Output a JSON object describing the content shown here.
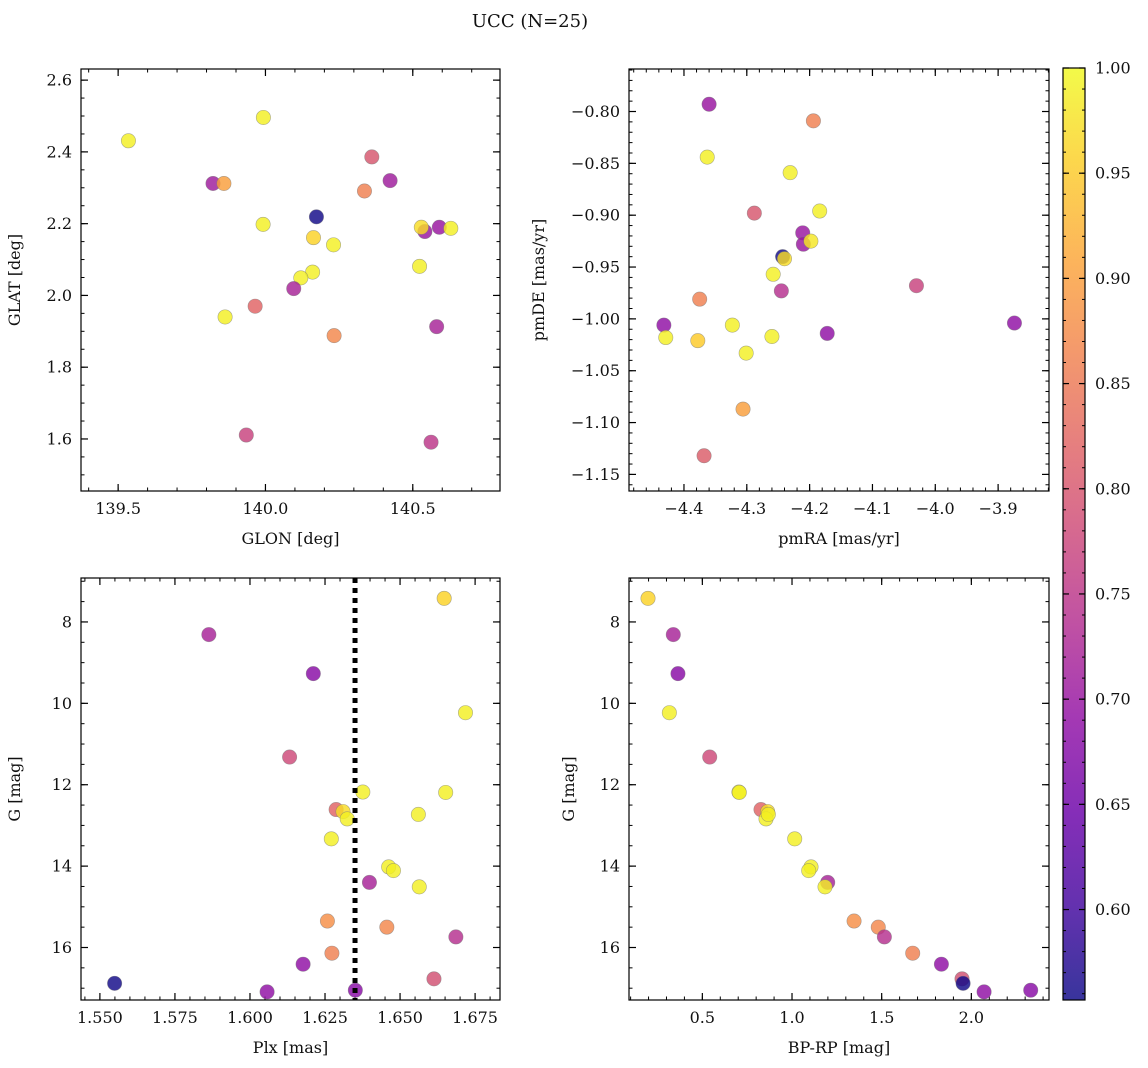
{
  "chart_data": {
    "title": "UCC (N=25)",
    "colorbar": {
      "colormap": "plasma",
      "range": [
        0.557,
        1.0
      ],
      "ticks": [
        0.6,
        0.65,
        0.7,
        0.75,
        0.8,
        0.85,
        0.9,
        0.95,
        1.0
      ],
      "ticklabels": [
        "0.60",
        "0.65",
        "0.70",
        "0.75",
        "0.80",
        "0.85",
        "0.90",
        "0.95",
        "1.00"
      ],
      "minor_step": 0.01
    },
    "panels": [
      {
        "type": "scatter",
        "xlabel": "GLON [deg]",
        "ylabel": "GLAT [deg]",
        "xlim": [
          139.374,
          140.796
        ],
        "ylim": [
          1.455,
          2.631
        ],
        "y_inverted": false,
        "xticks": [
          139.5,
          140.0,
          140.5
        ],
        "xticklabels": [
          "139.5",
          "140.0",
          "140.5"
        ],
        "xminor": 0.1,
        "yticks": [
          1.6,
          1.8,
          2.0,
          2.2,
          2.4,
          2.6
        ],
        "yticklabels": [
          "1.6",
          "1.8",
          "2.0",
          "2.2",
          "2.4",
          "2.6"
        ],
        "yminor": 0.05,
        "points": [
          [
            139.535,
            2.431,
            0.99
          ],
          [
            139.993,
            2.496,
            0.99
          ],
          [
            140.361,
            2.386,
            0.8
          ],
          [
            139.822,
            2.312,
            0.71
          ],
          [
            139.859,
            2.312,
            0.9
          ],
          [
            140.423,
            2.32,
            0.71
          ],
          [
            140.336,
            2.291,
            0.86
          ],
          [
            140.173,
            2.219,
            0.56
          ],
          [
            139.992,
            2.198,
            0.99
          ],
          [
            140.541,
            2.178,
            0.7
          ],
          [
            140.529,
            2.19,
            0.97
          ],
          [
            140.59,
            2.19,
            0.7
          ],
          [
            140.629,
            2.187,
            0.99
          ],
          [
            140.163,
            2.161,
            0.96
          ],
          [
            140.231,
            2.141,
            0.99
          ],
          [
            140.523,
            2.081,
            0.99
          ],
          [
            140.16,
            2.065,
            0.99
          ],
          [
            140.12,
            2.049,
            0.99
          ],
          [
            140.096,
            2.019,
            0.72
          ],
          [
            139.965,
            1.97,
            0.82
          ],
          [
            139.863,
            1.94,
            0.99
          ],
          [
            140.233,
            1.888,
            0.87
          ],
          [
            140.581,
            1.913,
            0.72
          ],
          [
            139.935,
            1.611,
            0.77
          ],
          [
            140.562,
            1.591,
            0.75
          ]
        ]
      },
      {
        "type": "scatter",
        "xlabel": "pmRA [mas/yr]",
        "ylabel": "pmDE [mas/yr]",
        "xlim": [
          -4.4875,
          -3.819
        ],
        "ylim": [
          -1.166,
          -0.759
        ],
        "y_inverted": false,
        "xticks": [
          -4.4,
          -4.3,
          -4.2,
          -4.1,
          -4.0,
          -3.9
        ],
        "xticklabels": [
          "−4.4",
          "−4.3",
          "−4.2",
          "−4.1",
          "−4.0",
          "−3.9"
        ],
        "xminor": 0.02,
        "yticks": [
          -1.15,
          -1.1,
          -1.05,
          -1.0,
          -0.95,
          -0.9,
          -0.85,
          -0.8
        ],
        "yticklabels": [
          "−1.15",
          "−1.10",
          "−1.05",
          "−1.00",
          "−0.95",
          "−0.90",
          "−0.85",
          "−0.80"
        ],
        "yminor": 0.01,
        "points": [
          [
            -4.36,
            -0.793,
            0.7
          ],
          [
            -4.194,
            -0.809,
            0.86
          ],
          [
            -4.363,
            -0.844,
            0.99
          ],
          [
            -4.231,
            -0.859,
            0.99
          ],
          [
            -4.288,
            -0.898,
            0.8
          ],
          [
            -4.184,
            -0.896,
            0.99
          ],
          [
            -4.211,
            -0.917,
            0.7
          ],
          [
            -4.21,
            -0.928,
            0.7
          ],
          [
            -4.198,
            -0.925,
            0.98
          ],
          [
            -4.243,
            -0.94,
            0.56
          ],
          [
            -4.24,
            -0.942,
            0.97
          ],
          [
            -4.258,
            -0.957,
            0.99
          ],
          [
            -4.245,
            -0.973,
            0.74
          ],
          [
            -4.03,
            -0.968,
            0.77
          ],
          [
            -4.375,
            -0.981,
            0.86
          ],
          [
            -4.432,
            -1.006,
            0.69
          ],
          [
            -4.429,
            -1.018,
            0.99
          ],
          [
            -4.323,
            -1.006,
            0.99
          ],
          [
            -4.378,
            -1.021,
            0.95
          ],
          [
            -4.26,
            -1.017,
            0.99
          ],
          [
            -4.301,
            -1.033,
            0.99
          ],
          [
            -4.172,
            -1.014,
            0.69
          ],
          [
            -3.874,
            -1.004,
            0.69
          ],
          [
            -4.306,
            -1.087,
            0.9
          ],
          [
            -4.368,
            -1.132,
            0.81
          ]
        ]
      },
      {
        "type": "scatter",
        "xlabel": "Plx [mas]",
        "ylabel": "G [mag]",
        "xlim": [
          1.5437,
          1.6833
        ],
        "ylim": [
          17.29,
          6.92
        ],
        "y_inverted": true,
        "xticks": [
          1.55,
          1.575,
          1.6,
          1.625,
          1.65,
          1.675
        ],
        "xticklabels": [
          "1.550",
          "1.575",
          "1.600",
          "1.625",
          "1.650",
          "1.675"
        ],
        "xminor": 0.005,
        "yticks": [
          8,
          10,
          12,
          14,
          16
        ],
        "yticklabels": [
          "8",
          "10",
          "12",
          "14",
          "16"
        ],
        "yminor": 0.5,
        "vline": 1.635,
        "points": [
          [
            1.6647,
            7.42,
            0.96
          ],
          [
            1.5863,
            8.31,
            0.72
          ],
          [
            1.6211,
            9.27,
            0.68
          ],
          [
            1.6718,
            10.23,
            0.99
          ],
          [
            1.6132,
            11.32,
            0.78
          ],
          [
            1.6376,
            12.18,
            0.99
          ],
          [
            1.6652,
            12.19,
            0.99
          ],
          [
            1.6287,
            12.61,
            0.82
          ],
          [
            1.631,
            12.66,
            0.97
          ],
          [
            1.6324,
            12.84,
            0.99
          ],
          [
            1.6561,
            12.73,
            0.99
          ],
          [
            1.6271,
            13.33,
            0.99
          ],
          [
            1.6462,
            14.02,
            0.99
          ],
          [
            1.6478,
            14.11,
            0.99
          ],
          [
            1.6398,
            14.4,
            0.72
          ],
          [
            1.6564,
            14.51,
            0.99
          ],
          [
            1.6258,
            15.35,
            0.88
          ],
          [
            1.6456,
            15.5,
            0.87
          ],
          [
            1.6686,
            15.74,
            0.74
          ],
          [
            1.6273,
            16.14,
            0.86
          ],
          [
            1.6177,
            16.41,
            0.69
          ],
          [
            1.6613,
            16.77,
            0.79
          ],
          [
            1.5549,
            16.88,
            0.56
          ],
          [
            1.6057,
            17.09,
            0.69
          ],
          [
            1.6351,
            17.05,
            0.68
          ]
        ]
      },
      {
        "type": "scatter",
        "xlabel": "BP-RP [mag]",
        "ylabel": "G [mag]",
        "xlim": [
          0.091,
          2.433
        ],
        "ylim": [
          17.29,
          6.92
        ],
        "y_inverted": true,
        "xticks": [
          0.5,
          1.0,
          1.5,
          2.0
        ],
        "xticklabels": [
          "0.5",
          "1.0",
          "1.5",
          "2.0"
        ],
        "xminor": 0.1,
        "yticks": [
          8,
          10,
          12,
          14,
          16
        ],
        "yticklabels": [
          "8",
          "10",
          "12",
          "14",
          "16"
        ],
        "yminor": 0.5,
        "points": [
          [
            0.197,
            7.42,
            0.96
          ],
          [
            0.338,
            8.31,
            0.72
          ],
          [
            0.364,
            9.27,
            0.68
          ],
          [
            0.316,
            10.23,
            0.99
          ],
          [
            0.541,
            11.32,
            0.78
          ],
          [
            0.704,
            12.18,
            0.99
          ],
          [
            0.706,
            12.19,
            0.99
          ],
          [
            0.827,
            12.61,
            0.82
          ],
          [
            0.864,
            12.66,
            0.97
          ],
          [
            0.855,
            12.84,
            0.99
          ],
          [
            0.868,
            12.73,
            0.99
          ],
          [
            1.015,
            13.33,
            0.99
          ],
          [
            1.106,
            14.02,
            0.99
          ],
          [
            1.093,
            14.11,
            0.99
          ],
          [
            1.199,
            14.4,
            0.72
          ],
          [
            1.184,
            14.51,
            0.99
          ],
          [
            1.346,
            15.35,
            0.88
          ],
          [
            1.481,
            15.5,
            0.87
          ],
          [
            1.515,
            15.74,
            0.74
          ],
          [
            1.673,
            16.14,
            0.86
          ],
          [
            1.833,
            16.41,
            0.69
          ],
          [
            1.948,
            16.77,
            0.79
          ],
          [
            1.954,
            16.88,
            0.56
          ],
          [
            2.071,
            17.09,
            0.69
          ],
          [
            2.331,
            17.05,
            0.68
          ]
        ]
      }
    ]
  }
}
